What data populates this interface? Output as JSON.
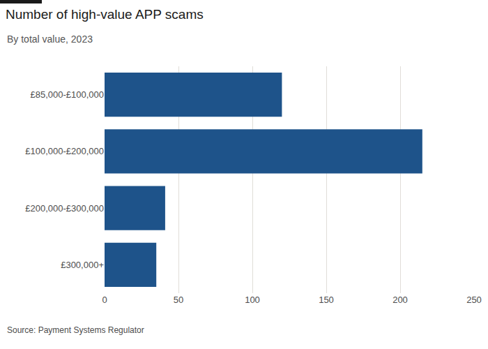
{
  "chart_data": {
    "type": "bar",
    "orientation": "horizontal",
    "title": "Number of high-value APP scams",
    "subtitle": "By total value, 2023",
    "source": "Source: Payment Systems Regulator",
    "categories": [
      "£85,000-£100,000",
      "£100,000-£200,000",
      "£200,000-£300,000",
      "£300,000+"
    ],
    "values": [
      120,
      215,
      41,
      35
    ],
    "color": "#1e538a",
    "xlim": [
      0,
      250
    ],
    "xticks": [
      0,
      50,
      100,
      150,
      200,
      250
    ],
    "grid": true,
    "data_labels": false
  }
}
